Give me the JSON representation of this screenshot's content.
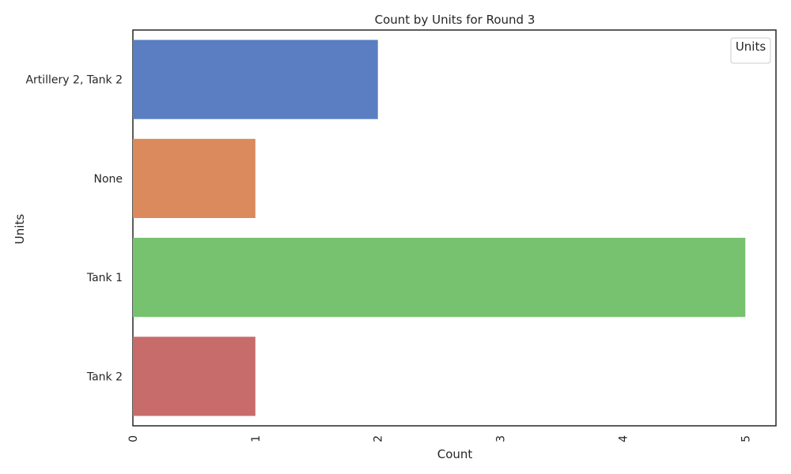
{
  "chart_data": {
    "type": "bar",
    "orientation": "horizontal",
    "title": "Count by Units for Round 3",
    "xlabel": "Count",
    "ylabel": "Units",
    "categories": [
      "Artillery 2, Tank 2",
      "None",
      "Tank 1",
      "Tank 2"
    ],
    "values": [
      2,
      1,
      5,
      1
    ],
    "xlim": [
      0,
      5.25
    ],
    "xticks": [
      "0",
      "1",
      "2",
      "3",
      "4",
      "5"
    ],
    "bar_colors": [
      "#5a7ec1",
      "#da8a5c",
      "#76c26e",
      "#c76b6b"
    ],
    "grid": false,
    "legend": {
      "title": "Units",
      "position": "top-right"
    }
  }
}
